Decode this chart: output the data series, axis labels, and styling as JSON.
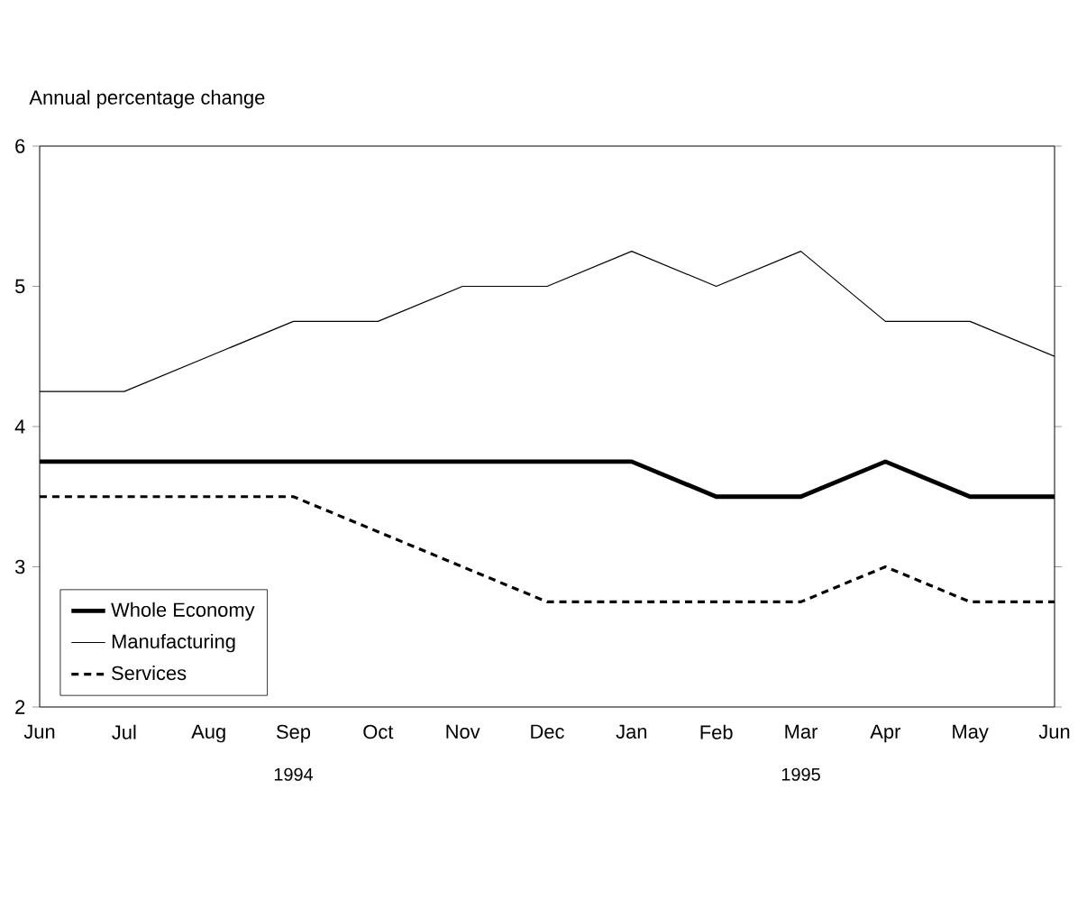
{
  "chart_data": {
    "type": "line",
    "ylabel": "Annual percentage change",
    "categories": [
      "Jun",
      "Jul",
      "Aug",
      "Sep",
      "Oct",
      "Nov",
      "Dec",
      "Jan",
      "Feb",
      "Mar",
      "Apr",
      "May",
      "Jun"
    ],
    "series": [
      {
        "name": "Whole Economy",
        "color": "#000000",
        "line_style": "solid",
        "values": [
          3.75,
          3.75,
          3.75,
          3.75,
          3.75,
          3.75,
          3.75,
          3.75,
          3.5,
          3.5,
          3.75,
          3.5,
          3.5
        ]
      },
      {
        "name": "Manufacturing",
        "color": "#000000",
        "line_style": "solid",
        "values": [
          4.25,
          4.25,
          4.5,
          4.75,
          4.75,
          5,
          5,
          5.25,
          5,
          5.25,
          4.75,
          4.75,
          4.5
        ]
      },
      {
        "name": "Services",
        "color": "#000000",
        "line_style": "dashed",
        "values": [
          3.5,
          3.5,
          3.5,
          3.5,
          3.25,
          3,
          2.75,
          2.75,
          2.75,
          2.75,
          3,
          2.75,
          2.75
        ]
      }
    ],
    "ylim": [
      2,
      6
    ],
    "yticks": [
      2,
      3,
      4,
      5,
      6
    ],
    "legend": "bottom left",
    "annotations": [
      "1994",
      "1995"
    ]
  }
}
